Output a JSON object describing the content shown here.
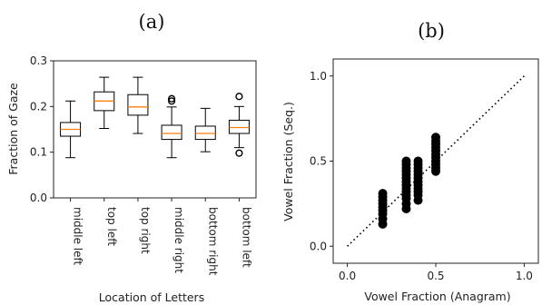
{
  "chart_data": [
    {
      "panel": "(a)",
      "type": "box",
      "ylabel": "Fraction of Gaze",
      "xlabel": "Location of Letters",
      "ylim": [
        0.0,
        0.3
      ],
      "yticks": [
        "0.0",
        "0.1",
        "0.2",
        "0.3"
      ],
      "median_color": "#ff7f0e",
      "categories": [
        "middle left",
        "top left",
        "top right",
        "middle right",
        "bottom right",
        "bottom left"
      ],
      "boxes": [
        {
          "whislo": 0.088,
          "q1": 0.135,
          "med": 0.15,
          "q3": 0.165,
          "whishi": 0.212,
          "fliers": []
        },
        {
          "whislo": 0.152,
          "q1": 0.191,
          "med": 0.212,
          "q3": 0.232,
          "whishi": 0.264,
          "fliers": []
        },
        {
          "whislo": 0.141,
          "q1": 0.181,
          "med": 0.199,
          "q3": 0.226,
          "whishi": 0.264,
          "fliers": []
        },
        {
          "whislo": 0.088,
          "q1": 0.128,
          "med": 0.141,
          "q3": 0.159,
          "whishi": 0.199,
          "fliers": [
            0.212,
            0.217
          ]
        },
        {
          "whislo": 0.101,
          "q1": 0.128,
          "med": 0.141,
          "q3": 0.157,
          "whishi": 0.196,
          "fliers": []
        },
        {
          "whislo": 0.11,
          "q1": 0.141,
          "med": 0.154,
          "q3": 0.17,
          "whishi": 0.2,
          "fliers": [
            0.222,
            0.098
          ]
        }
      ]
    },
    {
      "panel": "(b)",
      "type": "scatter",
      "xlabel": "Vowel Fraction (Anagram)",
      "ylabel": "Vowel Fraction (Seq.)",
      "xlim": [
        -0.08,
        1.08
      ],
      "ylim": [
        -0.1,
        1.1
      ],
      "xticks": [
        "0.0",
        "0.5",
        "1.0"
      ],
      "yticks": [
        "0.0",
        "0.5",
        "1.0"
      ],
      "reference_line": "y = x (dotted)",
      "point_color": "#000000",
      "groups": [
        {
          "x": 0.2,
          "y": [
            0.13,
            0.16,
            0.19,
            0.21,
            0.23,
            0.25,
            0.27,
            0.29,
            0.31
          ]
        },
        {
          "x": 0.333,
          "y": [
            0.22,
            0.25,
            0.28,
            0.3,
            0.32,
            0.34,
            0.36,
            0.38,
            0.4,
            0.42,
            0.44,
            0.46,
            0.48,
            0.5
          ]
        },
        {
          "x": 0.4,
          "y": [
            0.27,
            0.3,
            0.32,
            0.34,
            0.36,
            0.38,
            0.4,
            0.42,
            0.44,
            0.46,
            0.48,
            0.5
          ]
        },
        {
          "x": 0.5,
          "y": [
            0.44,
            0.46,
            0.48,
            0.5,
            0.52,
            0.54,
            0.56,
            0.58,
            0.6,
            0.62,
            0.64
          ]
        }
      ]
    }
  ]
}
